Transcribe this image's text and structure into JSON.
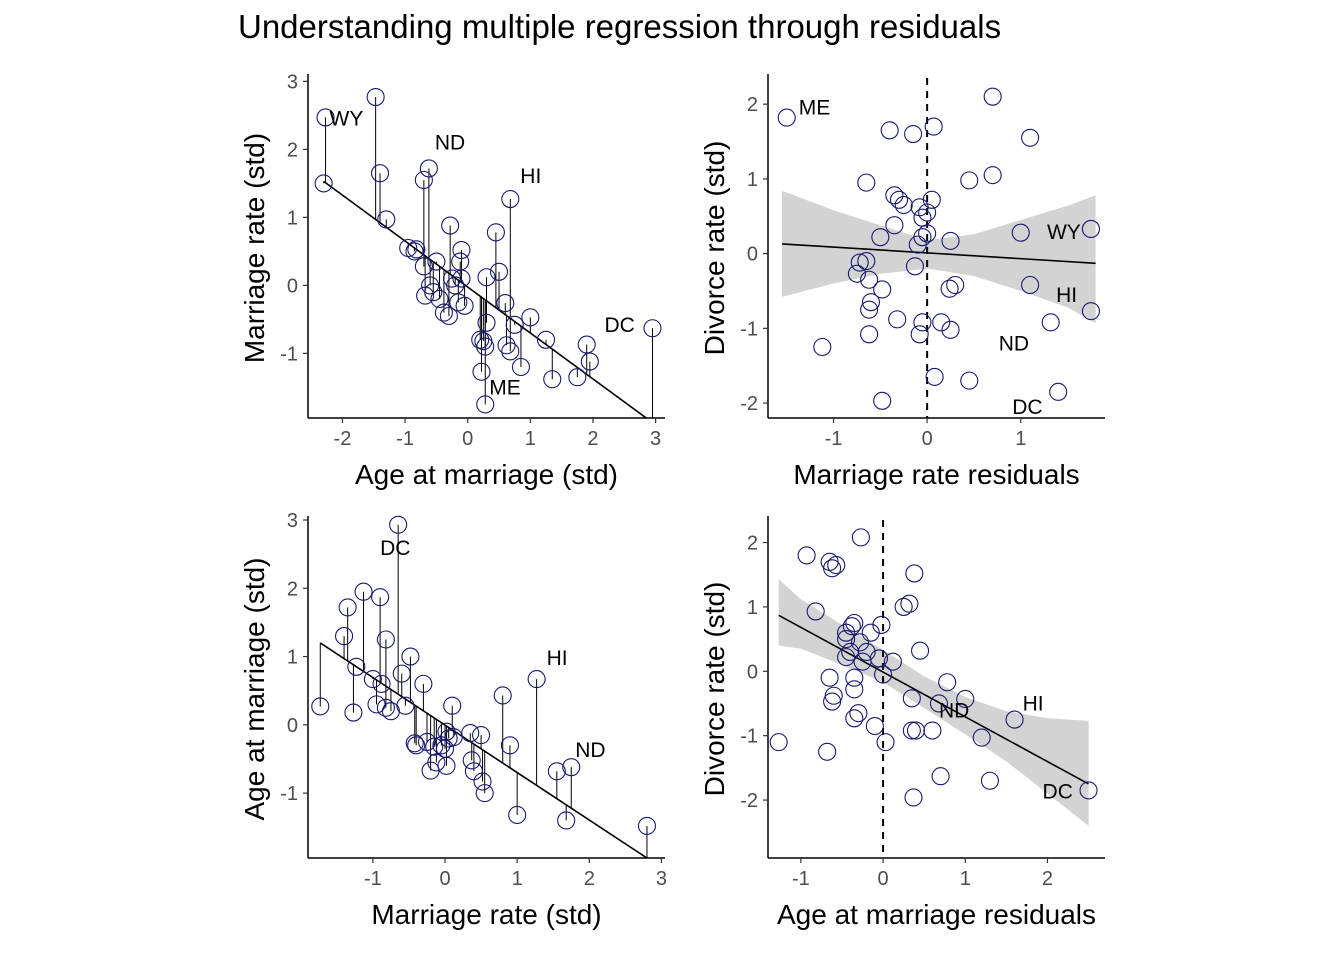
{
  "title": "Understanding multiple regression through residuals",
  "colors": {
    "point_stroke": "#191970",
    "line": "#000000",
    "ribbon": "#d3d3d3",
    "tick_text": "#4d4d4d",
    "segment": "#000000"
  },
  "chart_data": [
    {
      "type": "scatter",
      "panel": "top-left",
      "xlabel": "Age at marriage (std)",
      "ylabel": "Marriage rate (std)",
      "xlim": [
        -2.55,
        3.15
      ],
      "ylim": [
        -1.95,
        3.05
      ],
      "xticks": [
        -2,
        -1,
        0,
        1,
        2,
        3
      ],
      "yticks": [
        -1,
        0,
        1,
        2,
        3
      ],
      "fit_line": [
        [
          -2.3,
          1.53
        ],
        [
          2.85,
          -1.95
        ]
      ],
      "vertical_segments_to_fit": true,
      "ref_vline": null,
      "ribbon": null,
      "points": [
        [
          -2.27,
          2.47
        ],
        [
          -1.47,
          2.77
        ],
        [
          -2.3,
          1.5
        ],
        [
          -1.4,
          1.65
        ],
        [
          -1.3,
          0.97
        ],
        [
          -0.95,
          0.55
        ],
        [
          -0.82,
          0.53
        ],
        [
          -0.7,
          1.55
        ],
        [
          -0.62,
          1.72
        ],
        [
          -0.7,
          0.28
        ],
        [
          -0.6,
          0.0
        ],
        [
          -0.5,
          0.35
        ],
        [
          -0.68,
          -0.15
        ],
        [
          -0.55,
          -0.1
        ],
        [
          -0.38,
          -0.4
        ],
        [
          -0.3,
          -0.45
        ],
        [
          -0.28,
          0.88
        ],
        [
          -0.25,
          0.1
        ],
        [
          -0.2,
          0.0
        ],
        [
          -0.15,
          -0.25
        ],
        [
          -0.1,
          0.1
        ],
        [
          -0.05,
          -0.3
        ],
        [
          -0.1,
          0.52
        ],
        [
          -0.12,
          0.35
        ],
        [
          0.2,
          -0.8
        ],
        [
          0.25,
          -0.82
        ],
        [
          0.28,
          -0.9
        ],
        [
          0.3,
          0.12
        ],
        [
          0.3,
          -0.55
        ],
        [
          0.22,
          -1.27
        ],
        [
          0.28,
          -1.75
        ],
        [
          0.45,
          0.78
        ],
        [
          0.6,
          -0.26
        ],
        [
          0.62,
          -0.88
        ],
        [
          0.68,
          -0.97
        ],
        [
          0.75,
          -0.58
        ],
        [
          0.85,
          -1.2
        ],
        [
          1.0,
          -0.47
        ],
        [
          1.25,
          -0.8
        ],
        [
          1.35,
          -1.38
        ],
        [
          0.68,
          1.27
        ],
        [
          1.75,
          -1.35
        ],
        [
          1.9,
          -0.87
        ],
        [
          1.95,
          -1.12
        ],
        [
          2.95,
          -0.63
        ],
        [
          0.5,
          0.2
        ],
        [
          -0.45,
          -0.2
        ],
        [
          -0.85,
          0.5
        ]
      ],
      "point_labels": [
        {
          "text": "WY",
          "x": -2.27,
          "y": 2.47
        },
        {
          "text": "ND",
          "x": -0.62,
          "y": 1.72
        },
        {
          "text": "HI",
          "x": 0.68,
          "y": 1.27
        },
        {
          "text": "DC",
          "x": 2.95,
          "y": -0.63
        },
        {
          "text": "ME",
          "x": 0.28,
          "y": -1.75
        }
      ]
    },
    {
      "type": "scatter",
      "panel": "top-right",
      "xlabel": "Marriage rate residuals",
      "ylabel": "Divorce rate (std)",
      "xlim": [
        -1.7,
        1.9
      ],
      "ylim": [
        -2.2,
        2.35
      ],
      "xticks": [
        -1,
        0,
        1
      ],
      "yticks": [
        -2,
        -1,
        0,
        1,
        2
      ],
      "fit_line": [
        [
          -1.55,
          0.13
        ],
        [
          1.8,
          -0.13
        ]
      ],
      "vertical_segments_to_fit": false,
      "ref_vline": 0,
      "ribbon": {
        "x": [
          -1.55,
          -1.0,
          -0.5,
          0.0,
          0.5,
          1.0,
          1.5,
          1.8
        ],
        "lower": [
          -0.58,
          -0.4,
          -0.27,
          -0.2,
          -0.3,
          -0.5,
          -0.72,
          -0.93
        ],
        "upper": [
          0.84,
          0.58,
          0.38,
          0.18,
          0.26,
          0.45,
          0.64,
          0.78
        ]
      },
      "points": [
        [
          -1.5,
          1.82
        ],
        [
          -1.12,
          -1.25
        ],
        [
          -0.65,
          0.95
        ],
        [
          -0.4,
          1.65
        ],
        [
          -0.15,
          1.6
        ],
        [
          0.07,
          1.7
        ],
        [
          0.7,
          2.1
        ],
        [
          1.1,
          1.55
        ],
        [
          0.45,
          0.98
        ],
        [
          0.7,
          1.05
        ],
        [
          -0.35,
          0.78
        ],
        [
          -0.3,
          0.72
        ],
        [
          -0.25,
          0.65
        ],
        [
          -0.08,
          0.62
        ],
        [
          0.0,
          0.55
        ],
        [
          0.05,
          0.72
        ],
        [
          -0.05,
          0.48
        ],
        [
          -0.35,
          0.38
        ],
        [
          -0.05,
          0.22
        ],
        [
          0.0,
          0.27
        ],
        [
          -0.1,
          0.12
        ],
        [
          0.25,
          0.17
        ],
        [
          -0.5,
          0.22
        ],
        [
          -0.72,
          -0.12
        ],
        [
          -0.65,
          -0.1
        ],
        [
          -0.75,
          -0.27
        ],
        [
          -0.62,
          -0.35
        ],
        [
          -0.13,
          -0.17
        ],
        [
          -0.48,
          -0.48
        ],
        [
          -0.6,
          -0.65
        ],
        [
          -0.62,
          -0.75
        ],
        [
          0.3,
          -0.42
        ],
        [
          0.24,
          -0.47
        ],
        [
          -0.32,
          -0.88
        ],
        [
          -0.05,
          -0.92
        ],
        [
          0.15,
          -0.92
        ],
        [
          0.25,
          -1.02
        ],
        [
          -0.62,
          -1.08
        ],
        [
          -0.08,
          -1.08
        ],
        [
          0.08,
          -1.65
        ],
        [
          0.45,
          -1.7
        ],
        [
          -0.48,
          -1.97
        ],
        [
          1.0,
          0.28
        ],
        [
          1.75,
          0.33
        ],
        [
          1.1,
          -0.42
        ],
        [
          1.75,
          -0.77
        ],
        [
          1.32,
          -0.92
        ],
        [
          1.4,
          -1.85
        ]
      ],
      "point_labels": [
        {
          "text": "ME",
          "x": -1.5,
          "y": 1.82
        },
        {
          "text": "WY",
          "x": 1.75,
          "y": 0.33
        },
        {
          "text": "HI",
          "x": 1.1,
          "y": -0.42
        },
        {
          "text": "ND",
          "x": 1.32,
          "y": -0.92
        },
        {
          "text": "DC",
          "x": 1.4,
          "y": -1.85
        }
      ]
    },
    {
      "type": "scatter",
      "panel": "bottom-left",
      "xlabel": "Marriage rate (std)",
      "ylabel": "Age at marriage (std)",
      "xlim": [
        -1.9,
        3.05
      ],
      "ylim": [
        -1.95,
        3.0
      ],
      "xticks": [
        -1,
        0,
        1,
        2,
        3
      ],
      "yticks": [
        -1,
        0,
        1,
        2,
        3
      ],
      "fit_line": [
        [
          -1.73,
          1.2
        ],
        [
          2.8,
          -1.95
        ]
      ],
      "vertical_segments_to_fit": true,
      "ref_vline": null,
      "ribbon": null,
      "points": [
        [
          -1.73,
          0.27
        ],
        [
          -1.4,
          1.3
        ],
        [
          -1.35,
          1.72
        ],
        [
          -1.13,
          1.95
        ],
        [
          -0.9,
          1.87
        ],
        [
          -0.82,
          1.25
        ],
        [
          -0.65,
          2.93
        ],
        [
          -0.6,
          0.75
        ],
        [
          -0.48,
          1.0
        ],
        [
          -1.23,
          0.85
        ],
        [
          -1.27,
          0.18
        ],
        [
          -1.0,
          0.67
        ],
        [
          -0.95,
          0.3
        ],
        [
          -0.88,
          0.6
        ],
        [
          -0.82,
          0.25
        ],
        [
          -0.75,
          0.2
        ],
        [
          -0.55,
          0.28
        ],
        [
          -0.42,
          -0.27
        ],
        [
          -0.4,
          -0.3
        ],
        [
          -0.3,
          0.6
        ],
        [
          -0.25,
          -0.25
        ],
        [
          -0.2,
          -0.67
        ],
        [
          -0.12,
          -0.55
        ],
        [
          -0.05,
          -0.3
        ],
        [
          0.02,
          -0.6
        ],
        [
          0.05,
          -0.2
        ],
        [
          0.1,
          0.28
        ],
        [
          0.12,
          -0.18
        ],
        [
          0.35,
          -0.12
        ],
        [
          0.37,
          -0.52
        ],
        [
          0.4,
          -0.68
        ],
        [
          0.5,
          -0.15
        ],
        [
          0.52,
          -0.83
        ],
        [
          0.55,
          -1.0
        ],
        [
          0.8,
          0.43
        ],
        [
          0.9,
          -0.3
        ],
        [
          1.0,
          -1.32
        ],
        [
          1.27,
          0.67
        ],
        [
          1.55,
          -0.68
        ],
        [
          1.68,
          -1.4
        ],
        [
          1.75,
          -0.62
        ],
        [
          2.8,
          -1.48
        ],
        [
          0.0,
          -0.35
        ],
        [
          -0.15,
          -0.32
        ],
        [
          0.02,
          -0.1
        ]
      ],
      "point_labels": [
        {
          "text": "DC",
          "x": -0.65,
          "y": 2.93
        },
        {
          "text": "HI",
          "x": 1.27,
          "y": 0.67
        },
        {
          "text": "ND",
          "x": 1.75,
          "y": -0.62
        }
      ]
    },
    {
      "type": "scatter",
      "panel": "bottom-right",
      "xlabel": "Age at marriage residuals",
      "ylabel": "Divorce rate (std)",
      "xlim": [
        -1.4,
        2.7
      ],
      "ylim": [
        -2.9,
        2.35
      ],
      "xticks": [
        -1,
        0,
        1,
        2
      ],
      "yticks": [
        -2,
        -1,
        0,
        1,
        2
      ],
      "fit_line": [
        [
          -1.27,
          0.87
        ],
        [
          2.5,
          -1.75
        ]
      ],
      "vertical_segments_to_fit": false,
      "ref_vline": 0,
      "ribbon": {
        "x": [
          -1.27,
          -1.0,
          -0.5,
          0.0,
          0.5,
          1.0,
          1.5,
          2.0,
          2.5
        ],
        "lower": [
          0.4,
          0.35,
          0.1,
          -0.17,
          -0.57,
          -0.98,
          -1.4,
          -1.9,
          -2.4
        ],
        "upper": [
          1.43,
          1.12,
          0.72,
          0.33,
          -0.08,
          -0.4,
          -0.62,
          -0.73,
          -0.77
        ]
      },
      "points": [
        [
          -0.93,
          1.8
        ],
        [
          -0.65,
          1.7
        ],
        [
          -0.62,
          1.6
        ],
        [
          -0.57,
          1.65
        ],
        [
          -0.27,
          2.08
        ],
        [
          0.38,
          1.52
        ],
        [
          -0.82,
          0.93
        ],
        [
          0.25,
          1.0
        ],
        [
          0.32,
          1.05
        ],
        [
          -0.35,
          0.75
        ],
        [
          -0.38,
          0.7
        ],
        [
          -0.45,
          0.6
        ],
        [
          -0.15,
          0.6
        ],
        [
          -0.02,
          0.72
        ],
        [
          -0.28,
          0.45
        ],
        [
          -0.45,
          0.5
        ],
        [
          -0.4,
          0.3
        ],
        [
          -0.2,
          0.3
        ],
        [
          -0.05,
          0.2
        ],
        [
          0.12,
          0.15
        ],
        [
          -0.45,
          0.22
        ],
        [
          -0.25,
          0.15
        ],
        [
          0.45,
          0.32
        ],
        [
          -0.65,
          -0.1
        ],
        [
          -0.35,
          -0.1
        ],
        [
          0.0,
          -0.05
        ],
        [
          -0.6,
          -0.38
        ],
        [
          -0.62,
          -0.47
        ],
        [
          -0.35,
          -0.28
        ],
        [
          0.35,
          -0.42
        ],
        [
          1.0,
          -0.43
        ],
        [
          0.78,
          -0.17
        ],
        [
          0.68,
          -0.5
        ],
        [
          -0.3,
          -0.65
        ],
        [
          -0.35,
          -0.73
        ],
        [
          0.03,
          -1.1
        ],
        [
          -0.1,
          -0.85
        ],
        [
          0.35,
          -0.92
        ],
        [
          0.4,
          -0.92
        ],
        [
          0.6,
          -0.92
        ],
        [
          1.2,
          -1.03
        ],
        [
          -1.27,
          -1.1
        ],
        [
          -0.68,
          -1.25
        ],
        [
          0.7,
          -1.63
        ],
        [
          1.3,
          -1.7
        ],
        [
          0.37,
          -1.96
        ],
        [
          1.6,
          -0.75
        ],
        [
          2.5,
          -1.85
        ]
      ],
      "point_labels": [
        {
          "text": "ND",
          "x": 0.68,
          "y": -0.5
        },
        {
          "text": "HI",
          "x": 1.6,
          "y": -0.75
        },
        {
          "text": "DC",
          "x": 2.5,
          "y": -1.85
        }
      ]
    }
  ]
}
